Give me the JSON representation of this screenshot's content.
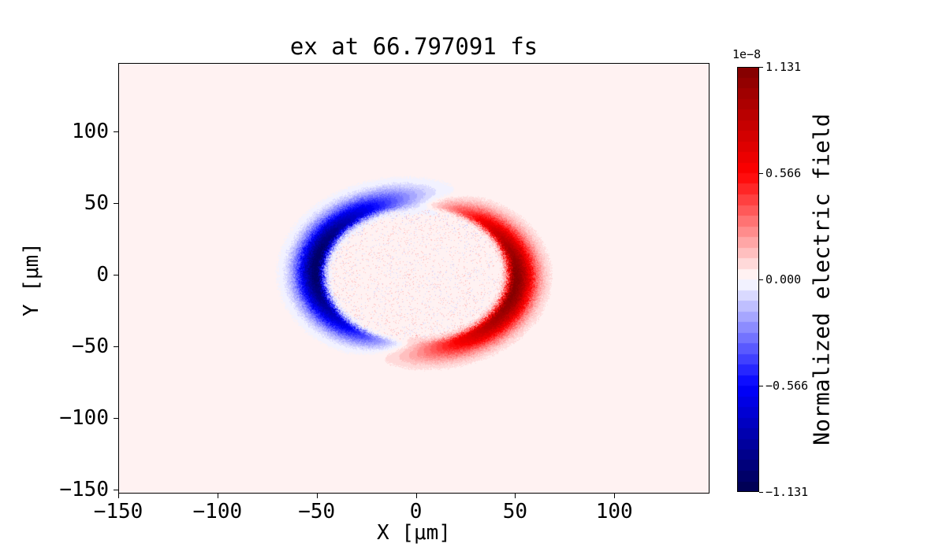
{
  "chart_data": {
    "type": "heatmap",
    "title": "ex at 66.797091 fs",
    "xlabel": "X [μm]",
    "ylabel": "Y [μm]",
    "xlim": [
      -150,
      148
    ],
    "ylim": [
      -153,
      148
    ],
    "grid": false,
    "xticks": {
      "values": [
        -150,
        -100,
        -50,
        0,
        50,
        100
      ],
      "labels": [
        "−150",
        "−100",
        "−50",
        "0",
        "50",
        "100"
      ]
    },
    "yticks": {
      "values": [
        100,
        50,
        0,
        -50,
        -100,
        -150
      ],
      "labels": [
        "100",
        "50",
        "0",
        "−50",
        "−100",
        "−150"
      ]
    },
    "colorbar": {
      "label": "Normalized electric field",
      "offset_text": "1e−8",
      "tick_values": [
        1.131,
        0.566,
        0,
        -0.566,
        -1.131
      ],
      "tick_labels": [
        "1.131",
        "0.566",
        "0.000",
        "−0.566",
        "−1.131"
      ],
      "vmin": -1.131,
      "vmax": 1.131,
      "levels": 40,
      "colormap": "seismic",
      "colormap_stops": [
        [
          0,
          "#00004d"
        ],
        [
          0.25,
          "#0000ff"
        ],
        [
          0.5,
          "#ffffff"
        ],
        [
          0.75,
          "#ff0000"
        ],
        [
          1,
          "#800000"
        ]
      ]
    },
    "field_model": {
      "description": "Snapshot of normalized Ex field (units 1e-8) on a thin ring of radius ~50 um centered at the origin: strong negative (dark blue) crescent on the -x side peaking near (-50,0), strong positive (dark red) crescent on the +x side peaking near (+50,0), a weaker diffuse halo at radius ~55 um that is negative (light blue) above and positive (light pink) below, slight positive near-zero background and faint speckle inside the ring.",
      "ring_radius_um": 50,
      "crescent_amplitude": 1.08,
      "crescent_inner_width_um": 2.5,
      "crescent_outer_width_um": 7,
      "halo_amplitude": 0.2,
      "halo_radius_um": 55,
      "halo_width_um": 6,
      "background_level": 0.02,
      "edge_noise_um": 1.3,
      "speckle_amplitude": 0.13,
      "speckle_inner_radius_um": 45
    }
  }
}
